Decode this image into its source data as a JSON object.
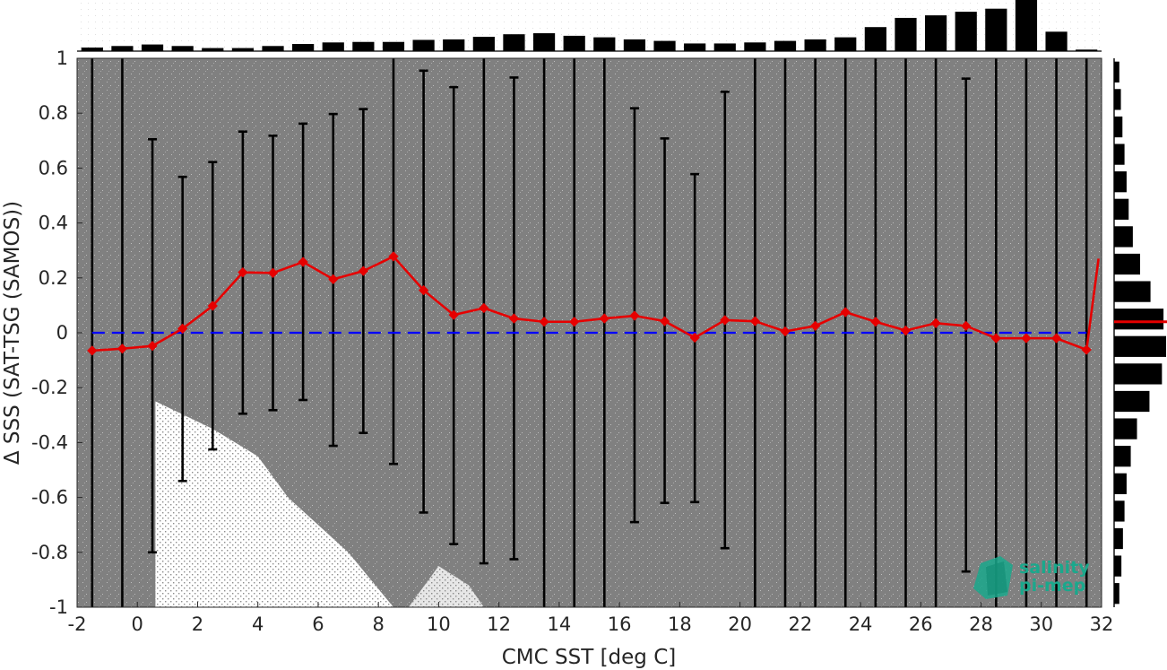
{
  "chart_data": {
    "type": "scatter",
    "xlabel": "CMC SST [deg C]",
    "ylabel": "Δ SSS (SAT-TSG (SAMOS))",
    "xlim": [
      -2,
      32
    ],
    "ylim": [
      -1,
      1
    ],
    "xticks": [
      -2,
      0,
      2,
      4,
      6,
      8,
      10,
      12,
      14,
      16,
      18,
      20,
      22,
      24,
      26,
      28,
      30,
      32
    ],
    "yticks": [
      -1,
      -0.8,
      -0.6,
      -0.4,
      -0.2,
      0,
      0.2,
      0.4,
      0.6,
      0.8,
      1
    ],
    "grid": false,
    "reference_line": {
      "y": 0,
      "style": "dashed",
      "color": "#0000ff"
    },
    "bins": {
      "x": [
        -1.5,
        -0.5,
        0.5,
        1.5,
        2.5,
        3.5,
        4.5,
        5.5,
        6.5,
        7.5,
        8.5,
        9.5,
        10.5,
        11.5,
        12.5,
        13.5,
        14.5,
        15.5,
        16.5,
        17.5,
        18.5,
        19.5,
        20.5,
        21.5,
        22.5,
        23.5,
        24.5,
        25.5,
        26.5,
        27.5,
        28.5,
        29.5,
        30.5,
        31.5
      ],
      "median": [
        -0.065,
        -0.058,
        -0.048,
        0.015,
        0.098,
        0.22,
        0.218,
        0.258,
        0.195,
        0.225,
        0.278,
        0.155,
        0.065,
        0.09,
        0.052,
        0.04,
        0.04,
        0.052,
        0.062,
        0.042,
        -0.018,
        0.046,
        0.042,
        0.005,
        0.025,
        0.075,
        0.04,
        0.008,
        0.035,
        0.025,
        -0.02,
        -0.02,
        -0.02,
        -0.062
      ],
      "upper": [
        1,
        1,
        0.705,
        0.568,
        0.622,
        0.733,
        0.718,
        0.762,
        0.797,
        0.815,
        1,
        0.955,
        0.895,
        1,
        0.93,
        1,
        1,
        1,
        0.818,
        0.708,
        0.578,
        0.878,
        1,
        1,
        1,
        1,
        1,
        1,
        1,
        0.926,
        1,
        1,
        1,
        1
      ],
      "lower": [
        -1,
        -1,
        -0.8,
        -0.54,
        -0.425,
        -0.295,
        -0.282,
        -0.245,
        -0.412,
        -0.365,
        -0.478,
        -0.655,
        -0.77,
        -0.84,
        -0.825,
        -1,
        -1,
        -1,
        -0.69,
        -0.62,
        -0.617,
        -0.785,
        -1,
        -1,
        -1,
        -1,
        -1,
        -1,
        -1,
        -0.87,
        -1,
        -1,
        -1,
        -1
      ]
    },
    "median_color": "#e60000",
    "scatter_color": "#808080",
    "top_histogram": {
      "x": [
        -1.5,
        -0.5,
        0.5,
        1.5,
        2.5,
        3.5,
        4.5,
        5.5,
        6.5,
        7.5,
        8.5,
        9.5,
        10.5,
        11.5,
        12.5,
        13.5,
        14.5,
        15.5,
        16.5,
        17.5,
        18.5,
        19.5,
        20.5,
        21.5,
        22.5,
        23.5,
        24.5,
        25.5,
        26.5,
        27.5,
        28.5,
        29.5,
        30.5,
        31.5
      ],
      "counts": [
        0.07,
        0.1,
        0.13,
        0.1,
        0.06,
        0.06,
        0.1,
        0.14,
        0.17,
        0.18,
        0.18,
        0.22,
        0.23,
        0.28,
        0.33,
        0.35,
        0.3,
        0.27,
        0.23,
        0.2,
        0.15,
        0.15,
        0.17,
        0.2,
        0.23,
        0.27,
        0.47,
        0.65,
        0.7,
        0.77,
        0.83,
        1.0,
        0.38,
        0.03
      ]
    },
    "right_histogram": {
      "y": [
        0.95,
        0.85,
        0.75,
        0.65,
        0.55,
        0.45,
        0.35,
        0.25,
        0.15,
        0.05,
        -0.05,
        -0.15,
        -0.25,
        -0.35,
        -0.45,
        -0.55,
        -0.65,
        -0.75,
        -0.85,
        -0.95
      ],
      "counts": [
        0.1,
        0.13,
        0.16,
        0.2,
        0.24,
        0.28,
        0.36,
        0.5,
        0.7,
        0.95,
        1.0,
        0.92,
        0.68,
        0.44,
        0.32,
        0.24,
        0.2,
        0.17,
        0.14,
        0.1
      ],
      "median_marker": 0.04
    },
    "logo": {
      "line1": "salinity",
      "line2": "pi-mep"
    }
  }
}
